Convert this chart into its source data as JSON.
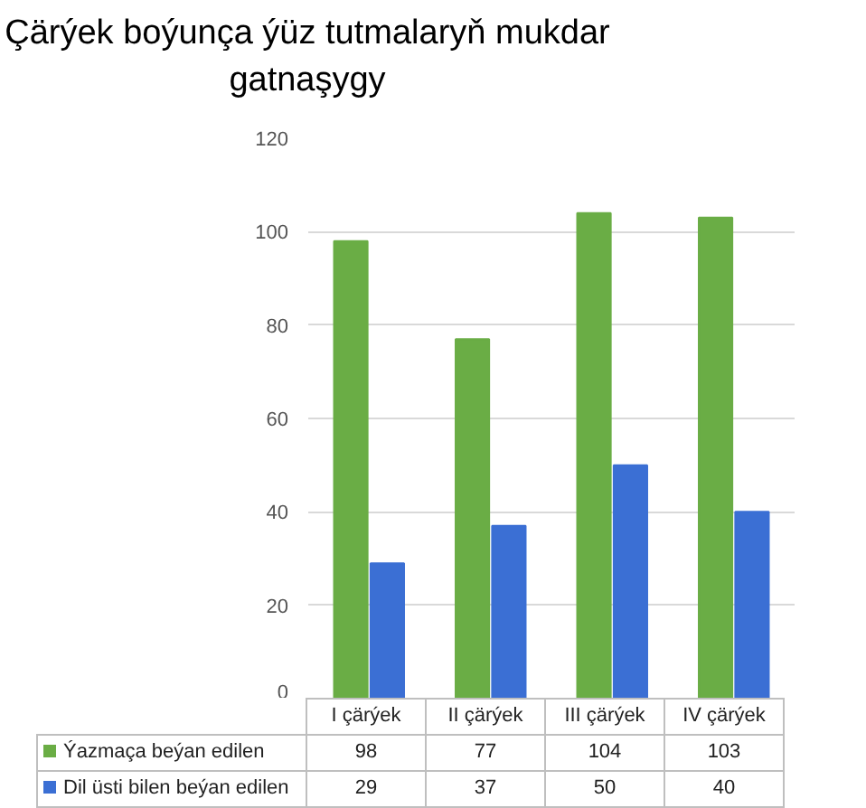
{
  "chart_data": {
    "type": "bar",
    "title": "Çärýek boýunça ýüz tutmalaryň mukdar gatnaşygy",
    "categories": [
      "I çärýek",
      "II çärýek",
      "III çärýek",
      "IV çärýek"
    ],
    "series": [
      {
        "name": "Ýazmaça beýan edilen",
        "color": "#6aad45",
        "values": [
          98,
          77,
          104,
          103
        ]
      },
      {
        "name": "Dil üsti bilen beýan edilen",
        "color": "#3b6fd4",
        "values": [
          29,
          37,
          50,
          40
        ]
      }
    ],
    "ylim": [
      0,
      120
    ],
    "yticks": [
      0,
      20,
      40,
      60,
      80,
      100,
      120
    ],
    "grid": "y",
    "legend": "bottom",
    "data_labels": true
  }
}
